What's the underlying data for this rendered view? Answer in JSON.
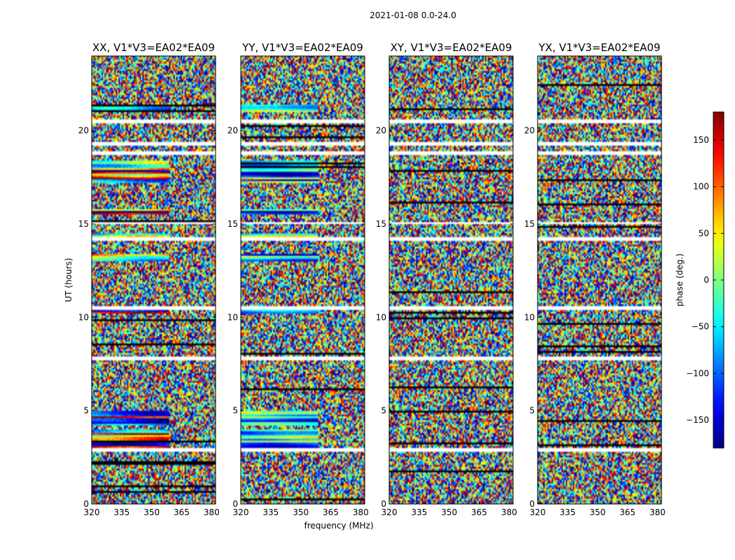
{
  "chart_data": {
    "type": "heatmap",
    "title": "2021-01-08 0.0-24.0",
    "xlabel": "frequency (MHz)",
    "ylabel": "UT (hours)",
    "colorbar_label": "phase (deg.)",
    "xlim": [
      320,
      382
    ],
    "ylim": [
      0,
      24
    ],
    "x_ticks": [
      "320",
      "335",
      "350",
      "365",
      "380"
    ],
    "y_ticks": [
      "0",
      "5",
      "10",
      "15",
      "20"
    ],
    "clim": [
      -180,
      180
    ],
    "colorbar_ticks": [
      "−150",
      "−100",
      "−50",
      "0",
      "50",
      "100",
      "150"
    ],
    "colormap": "jet",
    "panels": [
      {
        "title": "XX, V1*V3=EA02*EA09",
        "pol": "XX"
      },
      {
        "title": "YY, V1*V3=EA02*EA09",
        "pol": "YY"
      },
      {
        "title": "XY, V1*V3=EA02*EA09",
        "pol": "XY"
      },
      {
        "title": "YX, V1*V3=EA02*EA09",
        "pol": "YX"
      }
    ],
    "flagged_hours": [
      [
        2.8,
        2.95
      ],
      [
        4.05,
        4.15
      ],
      [
        7.7,
        7.9
      ],
      [
        10.4,
        10.6
      ],
      [
        14.1,
        14.25
      ],
      [
        15.0,
        15.1
      ],
      [
        18.7,
        18.85
      ],
      [
        19.2,
        19.35
      ],
      [
        20.45,
        20.55
      ]
    ],
    "coherent_hours": [
      [
        3.0,
        4.0
      ],
      [
        4.2,
        5.0
      ],
      [
        10.2,
        10.4
      ],
      [
        13.0,
        13.4
      ],
      [
        14.3,
        14.5
      ],
      [
        15.5,
        15.8
      ],
      [
        17.2,
        18.4
      ],
      [
        21.0,
        21.4
      ]
    ]
  }
}
